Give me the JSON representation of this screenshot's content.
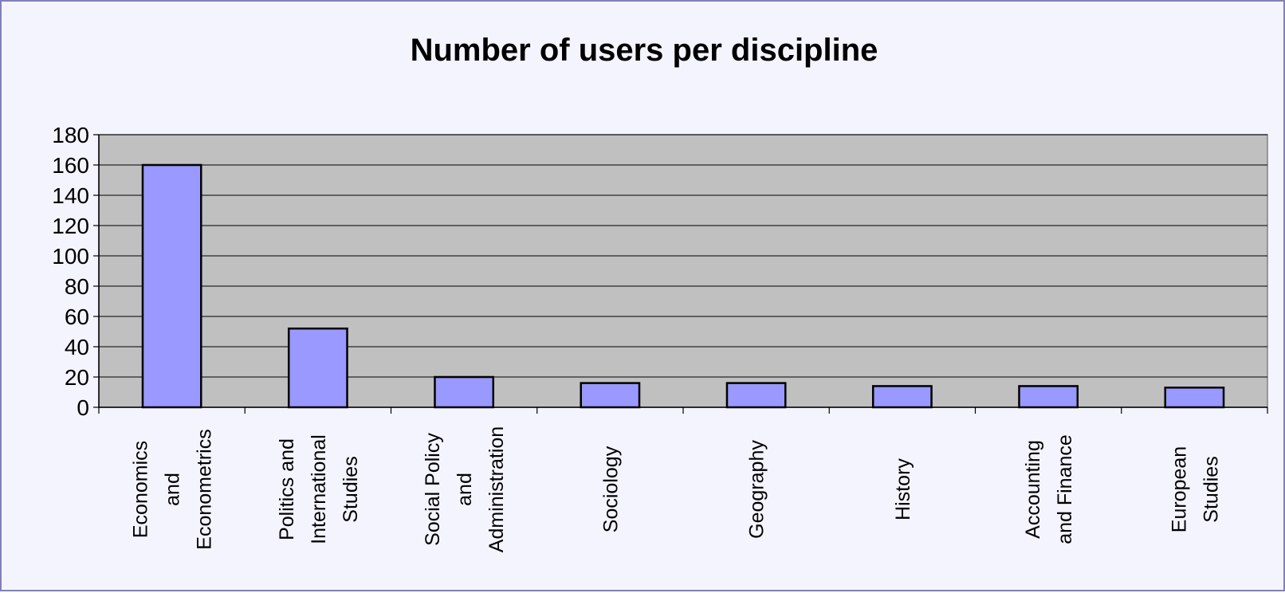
{
  "chart_data": {
    "type": "bar",
    "title": "Number of users per discipline",
    "xlabel": "",
    "ylabel": "",
    "ylim": [
      0,
      180
    ],
    "yticks": [
      0,
      20,
      40,
      60,
      80,
      100,
      120,
      140,
      160,
      180
    ],
    "grid": true,
    "legend": "none",
    "categories": [
      "Economics and Econometrics",
      "Politics and International Studies",
      "Social Policy and Administration",
      "Sociology",
      "Geography",
      "History",
      "Accounting and Finance",
      "European Studies"
    ],
    "category_label_lines": [
      [
        "Economics",
        "and",
        "Econometrics"
      ],
      [
        "Politics and",
        "International",
        "Studies"
      ],
      [
        "Social Policy",
        "and",
        "Administration"
      ],
      [
        "Sociology"
      ],
      [
        "Geography"
      ],
      [
        "History"
      ],
      [
        "Accounting",
        "and Finance"
      ],
      [
        "European",
        "Studies"
      ]
    ],
    "values": [
      160,
      52,
      20,
      16,
      16,
      14,
      14,
      13
    ],
    "colors": {
      "bar": "#9999ff",
      "plot_background": "#c0c0c0",
      "frame_background": "#f4f4ff",
      "frame_border": "#7f7fbf"
    }
  }
}
